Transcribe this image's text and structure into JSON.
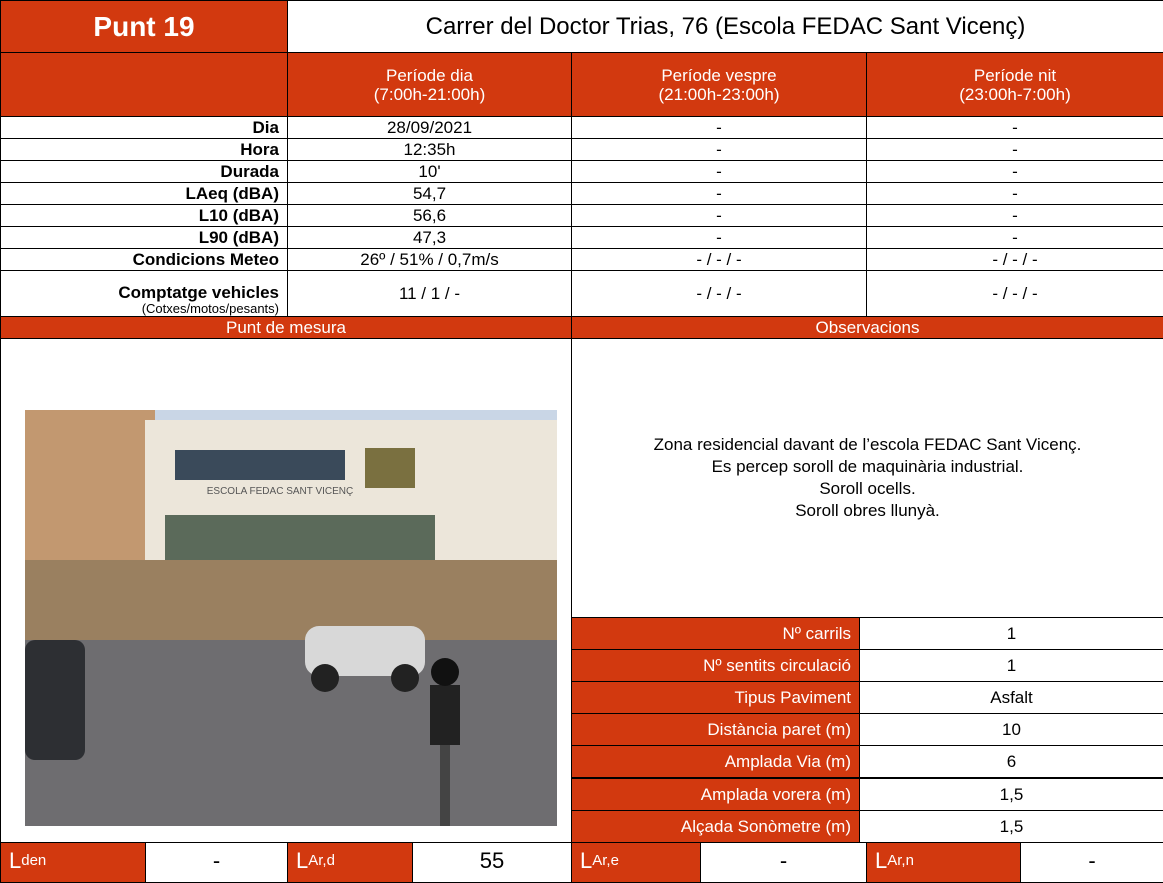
{
  "header": {
    "title": "Punt 19",
    "address": "Carrer del Doctor Trias, 76 (Escola FEDAC Sant Vicenç)"
  },
  "periods": [
    {
      "name": "Període dia",
      "range": "(7:00h-21:00h)"
    },
    {
      "name": "Període vespre",
      "range": "(21:00h-23:00h)"
    },
    {
      "name": "Període nit",
      "range": "(23:00h-7:00h)"
    }
  ],
  "rows": [
    {
      "label": "Dia",
      "values": [
        "28/09/2021",
        "-",
        "-"
      ]
    },
    {
      "label": "Hora",
      "values": [
        "12:35h",
        "-",
        "-"
      ]
    },
    {
      "label": "Durada",
      "values": [
        "10'",
        "-",
        "-"
      ]
    },
    {
      "label": "LAeq (dBA)",
      "values": [
        "54,7",
        "-",
        "-"
      ]
    },
    {
      "label": "L10 (dBA)",
      "values": [
        "56,6",
        "-",
        "-"
      ]
    },
    {
      "label": "L90 (dBA)",
      "values": [
        "47,3",
        "-",
        "-"
      ]
    },
    {
      "label": "Condicions Meteo",
      "values": [
        "26º / 51% / 0,7m/s",
        "- / - / -",
        "- / - / -"
      ]
    },
    {
      "label": "Comptatge vehicles",
      "sublabel": "(Cotxes/motos/pesants)",
      "values": [
        "11 / 1 / -",
        "- / - / -",
        "- / - / -"
      ]
    }
  ],
  "sections": {
    "point": "Punt de mesura",
    "observations": "Observacions"
  },
  "photo_sign": "ESCOLA FEDAC SANT VICENÇ",
  "observations": [
    "Zona residencial davant de l’escola FEDAC Sant Vicenç.",
    "Es percep soroll de maquinària industrial.",
    "Soroll ocells.",
    "Soroll obres llunyà."
  ],
  "parameters": [
    {
      "label": "Nº carrils",
      "value": "1"
    },
    {
      "label": "Nº sentits circulació",
      "value": "1"
    },
    {
      "label": "Tipus Paviment",
      "value": "Asfalt"
    },
    {
      "label": "Distància paret (m)",
      "value": "10"
    },
    {
      "label": "Amplada Via (m)",
      "value": "6"
    },
    {
      "label": "Amplada vorera (m)",
      "value": "1,5"
    },
    {
      "label": "Alçada Sonòmetre (m)",
      "value": "1,5"
    }
  ],
  "indicators": [
    {
      "label": "L",
      "sub": "den",
      "value": "-"
    },
    {
      "label": "L",
      "sub": "Ar,d",
      "value": "55"
    },
    {
      "label": "L",
      "sub": "Ar,e",
      "value": "-"
    },
    {
      "label": "L",
      "sub": "Ar,n",
      "value": "-"
    }
  ]
}
